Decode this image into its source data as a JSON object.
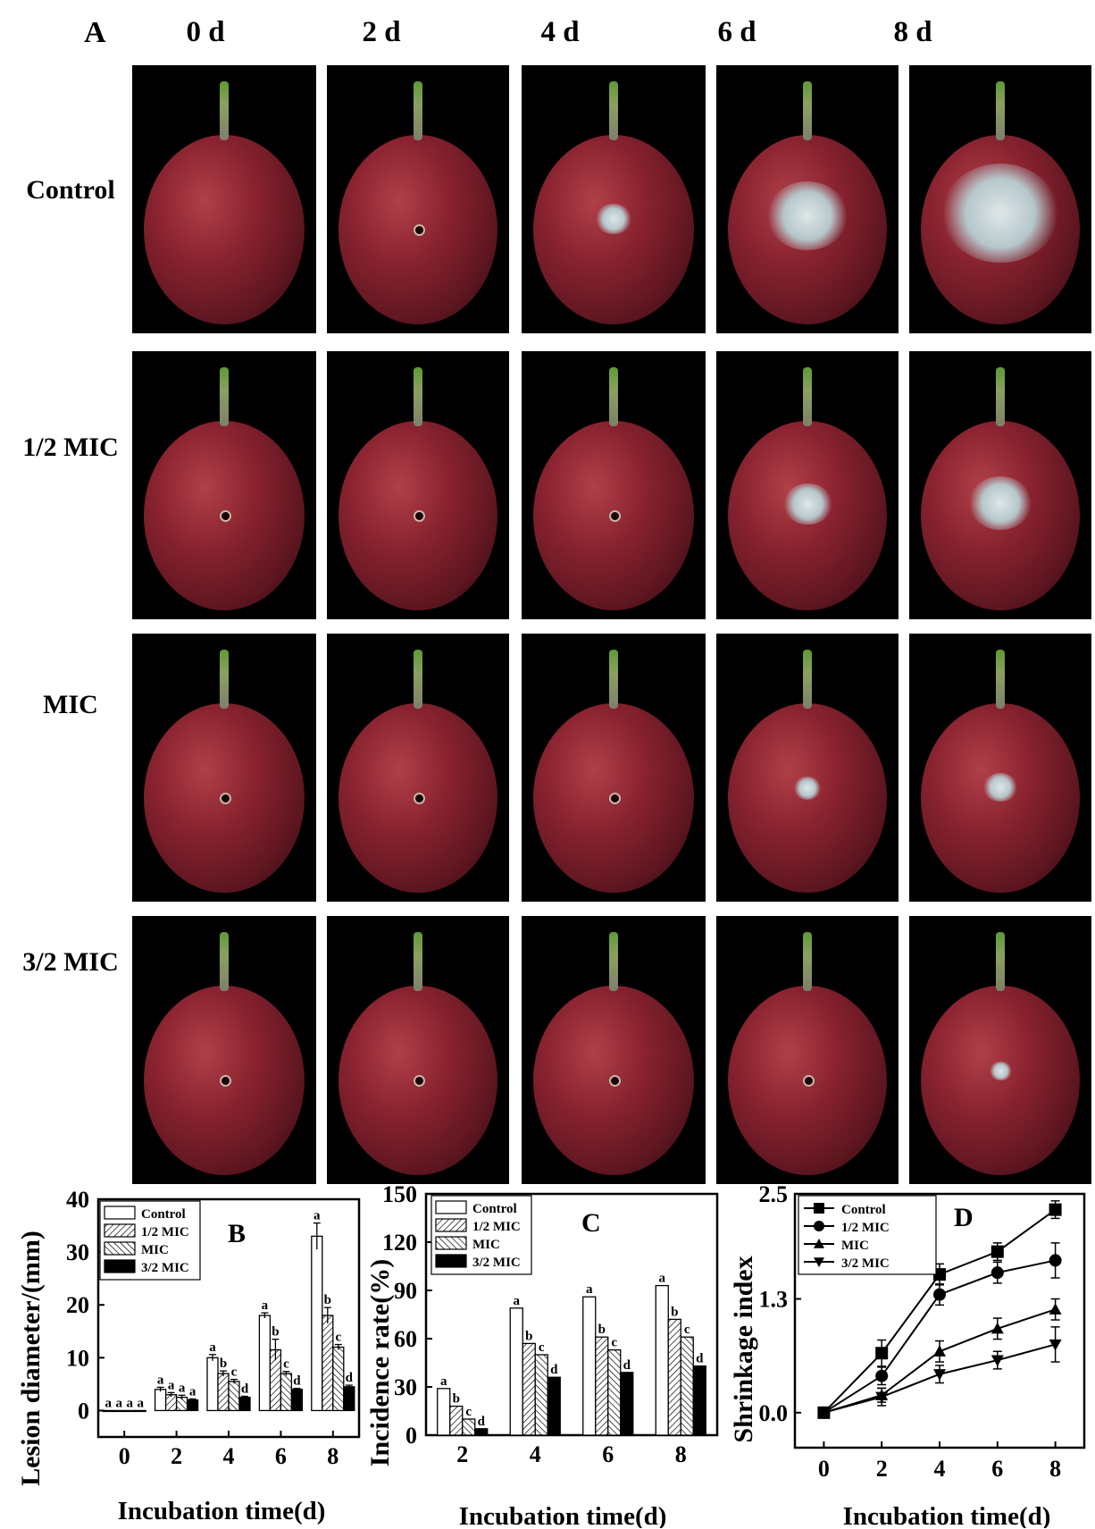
{
  "panel_a": {
    "label": "A",
    "columns": [
      "0 d",
      "2 d",
      "4 d",
      "6 d",
      "8 d"
    ],
    "rows": [
      "Control",
      "1/2 MIC",
      "MIC",
      "3/2 MIC"
    ]
  },
  "chart_data": [
    {
      "panel": "B",
      "type": "bar",
      "xlabel": "Incubation time(d)",
      "ylabel": "Lesion diameter/(mm)",
      "ylim": [
        -5,
        40
      ],
      "yticks": [
        0,
        10,
        20,
        30,
        40
      ],
      "categories": [
        "0",
        "2",
        "4",
        "6",
        "8"
      ],
      "series": [
        {
          "name": "Control",
          "values": [
            0,
            4,
            10,
            18,
            33
          ],
          "errors": [
            0,
            0.4,
            0.6,
            0.5,
            2.5
          ],
          "letters": [
            "a",
            "a",
            "a",
            "a",
            "a"
          ]
        },
        {
          "name": "1/2 MIC",
          "values": [
            0,
            3,
            7,
            11.5,
            18
          ],
          "errors": [
            0,
            0.4,
            0.5,
            2,
            1.5
          ],
          "letters": [
            "a",
            "a",
            "b",
            "b",
            "b"
          ]
        },
        {
          "name": "MIC",
          "values": [
            0,
            2.5,
            5.5,
            7,
            12
          ],
          "errors": [
            0,
            0.4,
            0.4,
            0.4,
            0.5
          ],
          "letters": [
            "a",
            "a",
            "c",
            "c",
            "c"
          ]
        },
        {
          "name": "3/2 MIC",
          "values": [
            0,
            2,
            2.5,
            4,
            4.5
          ],
          "errors": [
            0,
            0.2,
            0.2,
            0.2,
            0.3
          ],
          "letters": [
            "a",
            "a",
            "d",
            "d",
            "d"
          ]
        }
      ]
    },
    {
      "panel": "C",
      "type": "bar",
      "xlabel": "Incubation time(d)",
      "ylabel": "Incidence rate(%)",
      "ylim": [
        0,
        150
      ],
      "yticks": [
        0,
        30,
        60,
        90,
        120,
        150
      ],
      "categories": [
        "2",
        "4",
        "6",
        "8"
      ],
      "series": [
        {
          "name": "Control",
          "values": [
            29,
            79,
            86,
            93
          ],
          "letters": [
            "a",
            "a",
            "a",
            "a"
          ]
        },
        {
          "name": "1/2 MIC",
          "values": [
            18,
            57,
            61,
            72
          ],
          "letters": [
            "b",
            "b",
            "b",
            "b"
          ]
        },
        {
          "name": "MIC",
          "values": [
            10,
            50,
            53,
            61
          ],
          "letters": [
            "c",
            "c",
            "c",
            "c"
          ]
        },
        {
          "name": "3/2 MIC",
          "values": [
            4,
            36,
            39,
            43
          ],
          "letters": [
            "d",
            "d",
            "d",
            "d"
          ]
        }
      ]
    },
    {
      "panel": "D",
      "type": "line",
      "xlabel": "Incubation time(d)",
      "ylabel": "Shrinkage index",
      "xlim": [
        -1,
        9
      ],
      "ylim": [
        -0.4,
        2.5
      ],
      "xticks": [
        0,
        2,
        4,
        6,
        8
      ],
      "yticks": [
        "0.0",
        "1.3",
        "2.5"
      ],
      "x": [
        0,
        2,
        4,
        6,
        8
      ],
      "series": [
        {
          "name": "Control",
          "marker": "square",
          "values": [
            0,
            0.68,
            1.58,
            1.84,
            2.32
          ],
          "errors": [
            0,
            0.15,
            0.12,
            0.1,
            0.1
          ]
        },
        {
          "name": "1/2 MIC",
          "marker": "circle",
          "values": [
            0,
            0.42,
            1.35,
            1.6,
            1.74
          ],
          "errors": [
            0,
            0.1,
            0.12,
            0.12,
            0.2
          ]
        },
        {
          "name": "MIC",
          "marker": "triangle-up",
          "values": [
            0,
            0.2,
            0.7,
            0.96,
            1.18
          ],
          "errors": [
            0,
            0.08,
            0.12,
            0.12,
            0.12
          ]
        },
        {
          "name": "3/2 MIC",
          "marker": "triangle-down",
          "values": [
            0,
            0.18,
            0.44,
            0.6,
            0.78
          ],
          "errors": [
            0,
            0.1,
            0.1,
            0.1,
            0.2
          ]
        }
      ]
    }
  ]
}
